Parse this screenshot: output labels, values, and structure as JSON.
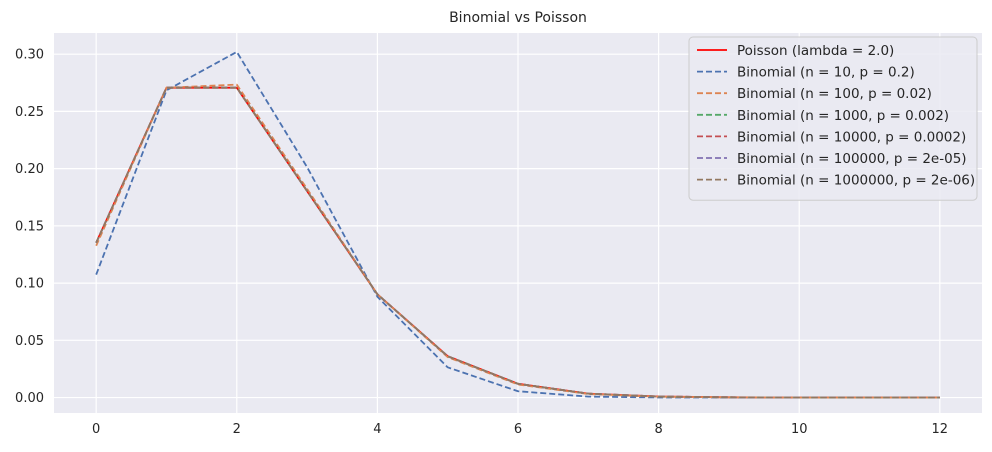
{
  "chart_data": {
    "type": "line",
    "title": "Binomial vs Poisson",
    "xlabel": "",
    "ylabel": "",
    "x": [
      0,
      1,
      2,
      3,
      4,
      5,
      6,
      7,
      8,
      9,
      10,
      11,
      12
    ],
    "xlim": [
      -0.6,
      12.6
    ],
    "ylim": [
      -0.0135,
      0.3185
    ],
    "xticks": [
      0,
      2,
      4,
      6,
      8,
      10,
      12
    ],
    "yticks": [
      0.0,
      0.05,
      0.1,
      0.15,
      0.2,
      0.25,
      0.3
    ],
    "xtick_labels": [
      "0",
      "2",
      "4",
      "6",
      "8",
      "10",
      "12"
    ],
    "ytick_labels": [
      "0.00",
      "0.05",
      "0.10",
      "0.15",
      "0.20",
      "0.25",
      "0.30"
    ],
    "grid": true,
    "legend_position": "top-right",
    "series": [
      {
        "name": "Poisson (lambda = 2.0)",
        "color": "#ff0000",
        "dash": "solid",
        "values": [
          0.1353,
          0.2707,
          0.2707,
          0.1804,
          0.0902,
          0.0361,
          0.012,
          0.0034,
          0.0009,
          0.0002,
          0.0,
          0.0,
          0.0
        ]
      },
      {
        "name": "Binomial (n = 10, p = 0.2)",
        "color": "#4c72b0",
        "dash": "dashed",
        "values": [
          0.1074,
          0.2684,
          0.302,
          0.2013,
          0.0881,
          0.0264,
          0.0055,
          0.0008,
          0.0001,
          0.0,
          0.0,
          0.0,
          0.0
        ]
      },
      {
        "name": "Binomial (n = 100, p = 0.02)",
        "color": "#dd8452",
        "dash": "dashed",
        "values": [
          0.1326,
          0.2707,
          0.2734,
          0.1823,
          0.0902,
          0.0353,
          0.0114,
          0.0031,
          0.0007,
          0.0002,
          0.0,
          0.0,
          0.0
        ]
      },
      {
        "name": "Binomial (n = 1000, p = 0.002)",
        "color": "#55a868",
        "dash": "dashed",
        "values": [
          0.1351,
          0.2707,
          0.2709,
          0.1806,
          0.0902,
          0.036,
          0.012,
          0.0034,
          0.0008,
          0.0002,
          0.0,
          0.0,
          0.0
        ]
      },
      {
        "name": "Binomial (n = 10000, p = 0.0002)",
        "color": "#c44e52",
        "dash": "dashed",
        "values": [
          0.1353,
          0.2707,
          0.2707,
          0.1805,
          0.0902,
          0.0361,
          0.012,
          0.0034,
          0.0009,
          0.0002,
          0.0,
          0.0,
          0.0
        ]
      },
      {
        "name": "Binomial (n = 100000, p = 2e-05)",
        "color": "#8172b3",
        "dash": "dashed",
        "values": [
          0.1353,
          0.2707,
          0.2707,
          0.1804,
          0.0902,
          0.0361,
          0.012,
          0.0034,
          0.0009,
          0.0002,
          0.0,
          0.0,
          0.0
        ]
      },
      {
        "name": "Binomial (n = 1000000, p = 2e-06)",
        "color": "#937860",
        "dash": "dashed",
        "values": [
          0.1353,
          0.2707,
          0.2707,
          0.1804,
          0.0902,
          0.0361,
          0.012,
          0.0034,
          0.0009,
          0.0002,
          0.0,
          0.0,
          0.0
        ]
      }
    ]
  },
  "colors": {
    "plot_background": "#eaeaf2",
    "grid": "#ffffff",
    "text": "#262626"
  }
}
